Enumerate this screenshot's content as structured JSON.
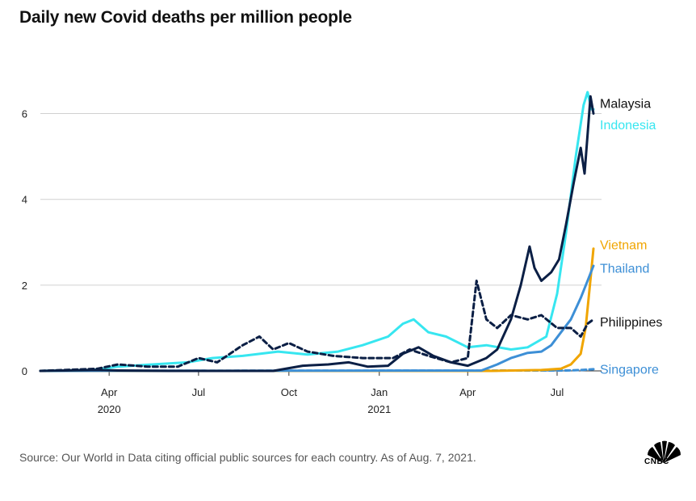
{
  "header": {
    "title": "Daily new Covid deaths per million people"
  },
  "footer": {
    "source": "Source: Our World in Data citing official public sources for each country. As of Aug. 7, 2021.",
    "logo_text": "CNBC"
  },
  "colors": {
    "malaysia": "#0b1f45",
    "indonesia": "#37e6f0",
    "vietnam": "#f0a500",
    "thailand": "#3d8fd6",
    "philippines": "#0b1f45",
    "singapore": "#3d8fd6",
    "grid": "#d0d0d0"
  },
  "chart_data": {
    "type": "line",
    "title": "Daily new Covid deaths per million people",
    "xlabel": "",
    "ylabel": "",
    "ylim": [
      0,
      6.5
    ],
    "yticks": [
      0,
      2,
      4,
      6
    ],
    "xlim": [
      "2020-01-22",
      "2021-08-07"
    ],
    "xticks": [
      {
        "date": "2020-04-01",
        "label": "Apr",
        "year": "2020"
      },
      {
        "date": "2020-07-01",
        "label": "Jul",
        "year": ""
      },
      {
        "date": "2020-10-01",
        "label": "Oct",
        "year": ""
      },
      {
        "date": "2021-01-01",
        "label": "Jan",
        "year": "2021"
      },
      {
        "date": "2021-04-01",
        "label": "Apr",
        "year": ""
      },
      {
        "date": "2021-07-01",
        "label": "Jul",
        "year": ""
      }
    ],
    "grid": true,
    "legend": "right-end-labels",
    "series": [
      {
        "name": "Malaysia",
        "color": "#0b1f45",
        "dash": false,
        "label_value": 6.25,
        "points": [
          [
            "2020-01-22",
            0
          ],
          [
            "2020-03-20",
            0.02
          ],
          [
            "2020-04-10",
            0.01
          ],
          [
            "2020-06-01",
            0
          ],
          [
            "2020-09-15",
            0
          ],
          [
            "2020-10-15",
            0.12
          ],
          [
            "2020-11-10",
            0.15
          ],
          [
            "2020-12-01",
            0.2
          ],
          [
            "2020-12-20",
            0.1
          ],
          [
            "2021-01-10",
            0.12
          ],
          [
            "2021-01-25",
            0.4
          ],
          [
            "2021-02-10",
            0.55
          ],
          [
            "2021-02-25",
            0.35
          ],
          [
            "2021-03-15",
            0.2
          ],
          [
            "2021-04-01",
            0.12
          ],
          [
            "2021-04-20",
            0.3
          ],
          [
            "2021-05-01",
            0.5
          ],
          [
            "2021-05-15",
            1.2
          ],
          [
            "2021-05-25",
            2.0
          ],
          [
            "2021-06-03",
            2.9
          ],
          [
            "2021-06-08",
            2.4
          ],
          [
            "2021-06-15",
            2.1
          ],
          [
            "2021-06-25",
            2.3
          ],
          [
            "2021-07-03",
            2.6
          ],
          [
            "2021-07-10",
            3.4
          ],
          [
            "2021-07-18",
            4.4
          ],
          [
            "2021-07-25",
            5.2
          ],
          [
            "2021-07-29",
            4.6
          ],
          [
            "2021-08-02",
            5.8
          ],
          [
            "2021-08-04",
            6.4
          ],
          [
            "2021-08-07",
            6.0
          ]
        ]
      },
      {
        "name": "Indonesia",
        "color": "#37e6f0",
        "dash": false,
        "label_value": 5.75,
        "points": [
          [
            "2020-01-22",
            0
          ],
          [
            "2020-03-15",
            0.02
          ],
          [
            "2020-04-10",
            0.1
          ],
          [
            "2020-05-15",
            0.15
          ],
          [
            "2020-06-20",
            0.2
          ],
          [
            "2020-07-15",
            0.3
          ],
          [
            "2020-08-15",
            0.35
          ],
          [
            "2020-09-20",
            0.45
          ],
          [
            "2020-10-20",
            0.38
          ],
          [
            "2020-11-20",
            0.45
          ],
          [
            "2020-12-15",
            0.6
          ],
          [
            "2021-01-10",
            0.8
          ],
          [
            "2021-01-25",
            1.1
          ],
          [
            "2021-02-05",
            1.2
          ],
          [
            "2021-02-20",
            0.9
          ],
          [
            "2021-03-10",
            0.8
          ],
          [
            "2021-04-01",
            0.55
          ],
          [
            "2021-04-20",
            0.6
          ],
          [
            "2021-05-15",
            0.5
          ],
          [
            "2021-06-01",
            0.55
          ],
          [
            "2021-06-20",
            0.8
          ],
          [
            "2021-07-01",
            1.8
          ],
          [
            "2021-07-10",
            3.2
          ],
          [
            "2021-07-20",
            5.0
          ],
          [
            "2021-07-28",
            6.2
          ],
          [
            "2021-08-01",
            6.5
          ],
          [
            "2021-08-05",
            6.1
          ],
          [
            "2021-08-07",
            6.1
          ]
        ]
      },
      {
        "name": "Vietnam",
        "color": "#f0a500",
        "dash": false,
        "label_value": 2.95,
        "points": [
          [
            "2020-01-22",
            0
          ],
          [
            "2021-04-25",
            0
          ],
          [
            "2021-06-15",
            0.02
          ],
          [
            "2021-07-05",
            0.05
          ],
          [
            "2021-07-15",
            0.15
          ],
          [
            "2021-07-25",
            0.4
          ],
          [
            "2021-07-30",
            1.0
          ],
          [
            "2021-08-03",
            1.9
          ],
          [
            "2021-08-07",
            2.85
          ]
        ]
      },
      {
        "name": "Thailand",
        "color": "#3d8fd6",
        "dash": false,
        "label_value": 2.4,
        "points": [
          [
            "2020-01-22",
            0
          ],
          [
            "2021-04-15",
            0.01
          ],
          [
            "2021-05-01",
            0.15
          ],
          [
            "2021-05-15",
            0.3
          ],
          [
            "2021-06-01",
            0.42
          ],
          [
            "2021-06-15",
            0.45
          ],
          [
            "2021-06-25",
            0.6
          ],
          [
            "2021-07-05",
            0.9
          ],
          [
            "2021-07-15",
            1.2
          ],
          [
            "2021-07-25",
            1.7
          ],
          [
            "2021-08-01",
            2.1
          ],
          [
            "2021-08-07",
            2.45
          ]
        ]
      },
      {
        "name": "Philippines",
        "color": "#0b1f45",
        "dash": true,
        "label_value": 1.15,
        "points": [
          [
            "2020-01-22",
            0
          ],
          [
            "2020-03-20",
            0.05
          ],
          [
            "2020-04-10",
            0.15
          ],
          [
            "2020-05-10",
            0.1
          ],
          [
            "2020-06-10",
            0.1
          ],
          [
            "2020-07-01",
            0.3
          ],
          [
            "2020-07-20",
            0.2
          ],
          [
            "2020-08-15",
            0.6
          ],
          [
            "2020-09-01",
            0.8
          ],
          [
            "2020-09-15",
            0.5
          ],
          [
            "2020-10-01",
            0.65
          ],
          [
            "2020-10-20",
            0.45
          ],
          [
            "2020-11-15",
            0.35
          ],
          [
            "2020-12-15",
            0.3
          ],
          [
            "2021-01-15",
            0.3
          ],
          [
            "2021-02-01",
            0.5
          ],
          [
            "2021-02-20",
            0.35
          ],
          [
            "2021-03-15",
            0.2
          ],
          [
            "2021-04-01",
            0.3
          ],
          [
            "2021-04-10",
            2.1
          ],
          [
            "2021-04-20",
            1.2
          ],
          [
            "2021-05-01",
            1.0
          ],
          [
            "2021-05-15",
            1.3
          ],
          [
            "2021-06-01",
            1.2
          ],
          [
            "2021-06-15",
            1.3
          ],
          [
            "2021-07-01",
            1.0
          ],
          [
            "2021-07-15",
            1.0
          ],
          [
            "2021-07-25",
            0.8
          ],
          [
            "2021-08-01",
            1.1
          ],
          [
            "2021-08-07",
            1.2
          ]
        ]
      },
      {
        "name": "Singapore",
        "color": "#3d8fd6",
        "dash": true,
        "label_value": 0.05,
        "points": [
          [
            "2020-01-22",
            0
          ],
          [
            "2021-07-10",
            0.01
          ],
          [
            "2021-07-25",
            0.02
          ],
          [
            "2021-08-07",
            0.04
          ]
        ]
      }
    ]
  }
}
